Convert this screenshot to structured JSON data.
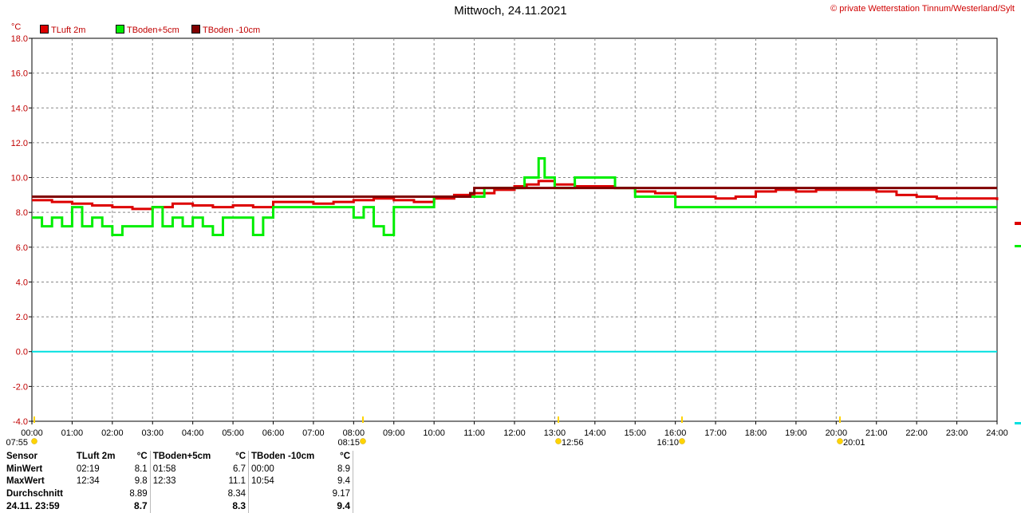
{
  "title": "Mittwoch, 24.11.2021",
  "copyright": "© private Wetterstation Tinnum/Westerland/Sylt",
  "unit": "°C",
  "legend": [
    {
      "label": "TLuft 2m",
      "color": "#dd0000"
    },
    {
      "label": "TBoden+5cm",
      "color": "#00ee00"
    },
    {
      "label": "TBoden -10cm",
      "color": "#800000"
    }
  ],
  "sun_markers": [
    {
      "label": "07:55"
    },
    {
      "label": "08:15"
    },
    {
      "label": "12:56"
    },
    {
      "label": "16:10"
    },
    {
      "label": "20:01"
    }
  ],
  "stats": {
    "headers": [
      "Sensor",
      "TLuft 2m",
      "°C",
      "TBoden+5cm",
      "°C",
      "TBoden -10cm",
      "°C"
    ],
    "rows": [
      [
        "MinWert",
        "02:19",
        "8.1",
        "01:58",
        "6.7",
        "00:00",
        "8.9"
      ],
      [
        "MaxWert",
        "12:34",
        "9.8",
        "12:33",
        "11.1",
        "10:54",
        "9.4"
      ],
      [
        "Durchschnitt",
        "",
        "8.89",
        "",
        "8.34",
        "",
        "9.17"
      ],
      [
        "24.11. 23:59",
        "",
        "8.7",
        "",
        "8.3",
        "",
        "9.4"
      ]
    ]
  },
  "chart_data": {
    "type": "line",
    "ylabel": "°C",
    "xlim": [
      "00:00",
      "24:00"
    ],
    "ylim": [
      -4,
      18
    ],
    "yticks": [
      "-4.0",
      "-2.0",
      "0.0",
      "2.0",
      "4.0",
      "6.0",
      "8.0",
      "10.0",
      "12.0",
      "14.0",
      "16.0",
      "18.0"
    ],
    "xticks": [
      "00:00",
      "01:00",
      "02:00",
      "03:00",
      "04:00",
      "05:00",
      "06:00",
      "07:00",
      "08:00",
      "09:00",
      "10:00",
      "11:00",
      "12:00",
      "13:00",
      "14:00",
      "15:00",
      "16:00",
      "17:00",
      "18:00",
      "19:00",
      "20:00",
      "21:00",
      "22:00",
      "23:00",
      "24:00"
    ],
    "grid": true,
    "reference_line": {
      "y": 0,
      "color": "#00e0e0"
    },
    "series": [
      {
        "name": "TLuft 2m",
        "color": "#dd0000",
        "x": [
          0,
          0.5,
          1,
          1.5,
          2,
          2.5,
          3,
          3.5,
          4,
          4.5,
          5,
          5.5,
          6,
          6.5,
          7,
          7.5,
          8,
          8.5,
          9,
          9.5,
          10,
          10.5,
          11,
          11.5,
          12,
          12.3,
          12.6,
          13,
          13.5,
          14,
          14.5,
          15,
          15.5,
          16,
          16.5,
          17,
          17.5,
          18,
          18.5,
          19,
          19.5,
          20,
          20.5,
          21,
          21.5,
          22,
          22.5,
          23,
          23.5,
          24
        ],
        "y": [
          8.7,
          8.6,
          8.5,
          8.4,
          8.3,
          8.2,
          8.3,
          8.5,
          8.4,
          8.3,
          8.4,
          8.3,
          8.6,
          8.6,
          8.5,
          8.6,
          8.7,
          8.8,
          8.7,
          8.6,
          8.8,
          9.0,
          9.1,
          9.3,
          9.5,
          9.6,
          9.8,
          9.6,
          9.5,
          9.5,
          9.4,
          9.2,
          9.1,
          8.9,
          8.9,
          8.8,
          8.9,
          9.2,
          9.3,
          9.2,
          9.3,
          9.3,
          9.3,
          9.2,
          9.0,
          8.9,
          8.8,
          8.8,
          8.8,
          8.7
        ]
      },
      {
        "name": "TBoden+5cm",
        "color": "#00ee00",
        "x": [
          0,
          0.25,
          0.5,
          0.75,
          1,
          1.25,
          1.5,
          1.75,
          2,
          2.25,
          2.5,
          2.75,
          3,
          3.25,
          3.5,
          3.75,
          4,
          4.25,
          4.5,
          4.75,
          5,
          5.25,
          5.5,
          5.75,
          6,
          6.5,
          7,
          7.5,
          8,
          8.25,
          8.5,
          8.75,
          9,
          9.25,
          9.5,
          10,
          10.5,
          11,
          11.25,
          11.5,
          12,
          12.25,
          12.5,
          12.6,
          12.75,
          13,
          13.5,
          14,
          14.5,
          15,
          15.5,
          16,
          16.5,
          17,
          17.5,
          18,
          18.5,
          19,
          19.5,
          20,
          20.5,
          21,
          21.5,
          22,
          22.5,
          23,
          23.5,
          24
        ],
        "y": [
          7.7,
          7.2,
          7.7,
          7.2,
          8.3,
          7.2,
          7.7,
          7.2,
          6.7,
          7.2,
          7.2,
          7.2,
          8.3,
          7.2,
          7.7,
          7.2,
          7.7,
          7.2,
          6.7,
          7.7,
          7.7,
          7.7,
          6.7,
          7.7,
          8.3,
          8.3,
          8.3,
          8.3,
          7.7,
          8.3,
          7.2,
          6.7,
          8.3,
          8.3,
          8.3,
          8.9,
          8.9,
          8.9,
          9.4,
          9.4,
          9.4,
          10.0,
          10.0,
          11.1,
          10.0,
          9.4,
          10.0,
          10.0,
          9.4,
          8.9,
          8.9,
          8.3,
          8.3,
          8.3,
          8.3,
          8.3,
          8.3,
          8.3,
          8.3,
          8.3,
          8.3,
          8.3,
          8.3,
          8.3,
          8.3,
          8.3,
          8.3,
          8.3
        ]
      },
      {
        "name": "TBoden -10cm",
        "color": "#800000",
        "x": [
          0,
          10.5,
          10.9,
          11,
          24
        ],
        "y": [
          8.9,
          8.9,
          9.1,
          9.4,
          9.4
        ]
      }
    ]
  }
}
